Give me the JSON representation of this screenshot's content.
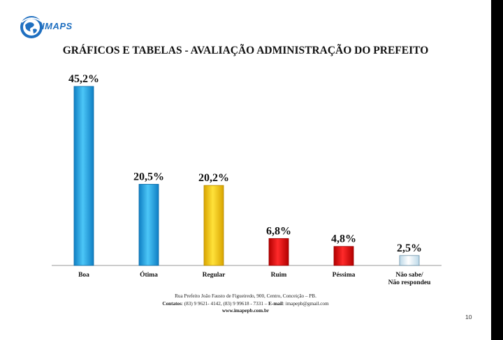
{
  "title": "GRÁFICOS E TABELAS - AVALIAÇÃO ADMINISTRAÇÃO DO PREFEITO",
  "logo_text": "IMAPS",
  "chart_data": {
    "type": "bar",
    "categories": [
      "Boa",
      "Ótima",
      "Regular",
      "Ruim",
      "Péssima",
      "Não sabe/ Não respondeu"
    ],
    "values": [
      45.2,
      20.5,
      20.2,
      6.8,
      4.8,
      2.5
    ],
    "labels": [
      "45,2%",
      "20,5%",
      "20,2%",
      "6,8%",
      "4,8%",
      "2,5%"
    ],
    "colors": [
      "#29aaea",
      "#29aaea",
      "#ffcc00",
      "#ee0000",
      "#ee0000",
      "#e6f2f8"
    ],
    "ylim": [
      0,
      45.2
    ],
    "grid": false,
    "legend": "none"
  },
  "footer": {
    "address": "Rua Prefeito João Fausto de Figueiredo, 900, Centro, Conceição – PB.",
    "contacts_label": "Contatos",
    "contacts": ": (83) 9 9621- 4142, (83) 9 99618 - 7331 – ",
    "email_label": "E-mail",
    "email": ": imapepb@gmail.com",
    "website": "www.imapepb.com.br"
  },
  "page_number": "10"
}
